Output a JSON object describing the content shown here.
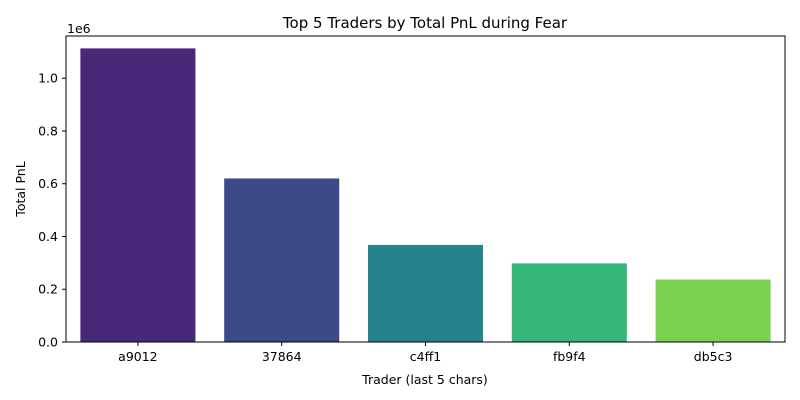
{
  "chart_data": {
    "type": "bar",
    "title": "Top 5 Traders by Total PnL during Fear",
    "xlabel": "Trader (last 5 chars)",
    "ylabel": "Total PnL",
    "offset_text": "1e6",
    "categories": [
      "a9012",
      "37864",
      "c4ff1",
      "fb9f4",
      "db5c3"
    ],
    "values": [
      1113000,
      620000,
      368000,
      298000,
      237000
    ],
    "colors": [
      "#482878",
      "#3e4989",
      "#26828e",
      "#35b779",
      "#7ad151"
    ],
    "ylim": [
      0,
      1160000
    ],
    "yticks": [
      0,
      200000,
      400000,
      600000,
      800000,
      1000000
    ],
    "ytick_labels": [
      "0.0",
      "0.2",
      "0.4",
      "0.6",
      "0.8",
      "1.0"
    ],
    "grid": false,
    "legend": "none"
  }
}
